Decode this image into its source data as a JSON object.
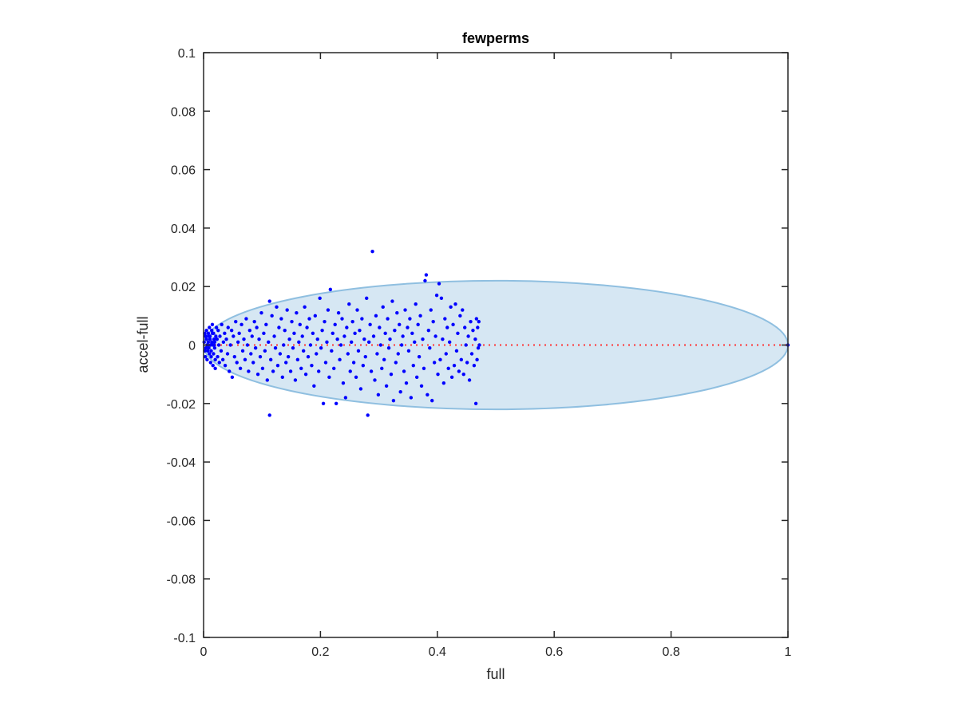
{
  "chart_data": {
    "type": "scatter",
    "title": "fewperms",
    "xlabel": "full",
    "ylabel": "accel-full",
    "xlim": [
      0,
      1
    ],
    "ylim": [
      -0.1,
      0.1
    ],
    "xticks": [
      0,
      0.2,
      0.4,
      0.6,
      0.8,
      1
    ],
    "xtick_labels": [
      "0",
      "0.2",
      "0.4",
      "0.6",
      "0.8",
      "1"
    ],
    "yticks": [
      -0.1,
      -0.08,
      -0.06,
      -0.04,
      -0.02,
      0,
      0.02,
      0.04,
      0.06,
      0.08,
      0.1
    ],
    "ytick_labels": [
      "-0.1",
      "-0.08",
      "-0.06",
      "-0.04",
      "-0.02",
      "0",
      "0.02",
      "0.04",
      "0.06",
      "0.08",
      "0.1"
    ],
    "grid": false,
    "colors": {
      "points": "#0000ff",
      "ellipse_fill": "#d6e7f3",
      "ellipse_stroke": "#8fbfe0",
      "reference_line": "#ff3333",
      "axes": "#262626"
    },
    "ellipse": {
      "center": [
        0.5,
        0
      ],
      "semi_axis_x": 0.5,
      "semi_axis_y": 0.022
    },
    "reference_line": {
      "from": [
        0,
        0
      ],
      "to": [
        1,
        0
      ],
      "style": "dotted"
    },
    "series": [
      {
        "points": [
          [
            0.001,
            0.001
          ],
          [
            0.002,
            -0.002
          ],
          [
            0.003,
            0.003
          ],
          [
            0.002,
            0.004
          ],
          [
            0.004,
            -0.001
          ],
          [
            0.005,
            0.002
          ],
          [
            0.003,
            -0.004
          ],
          [
            0.006,
            0.0
          ],
          [
            0.004,
            0.003
          ],
          [
            0.007,
            -0.002
          ],
          [
            0.005,
            0.005
          ],
          [
            0.008,
            0.001
          ],
          [
            0.006,
            -0.005
          ],
          [
            0.009,
            0.003
          ],
          [
            0.007,
            0.0
          ],
          [
            0.01,
            -0.003
          ],
          [
            0.008,
            0.004
          ],
          [
            0.011,
            0.002
          ],
          [
            0.009,
            -0.001
          ],
          [
            0.012,
            0.0
          ],
          [
            0.01,
            0.006
          ],
          [
            0.013,
            -0.004
          ],
          [
            0.011,
            0.003
          ],
          [
            0.014,
            0.001
          ],
          [
            0.012,
            -0.006
          ],
          [
            0.015,
            0.004
          ],
          [
            0.013,
            -0.002
          ],
          [
            0.016,
            0.0
          ],
          [
            0.014,
            0.005
          ],
          [
            0.017,
            -0.003
          ],
          [
            0.015,
            0.007
          ],
          [
            0.018,
            0.002
          ],
          [
            0.016,
            -0.007
          ],
          [
            0.019,
            0.001
          ],
          [
            0.017,
            0.004
          ],
          [
            0.02,
            -0.005
          ],
          [
            0.018,
            0.0
          ],
          [
            0.021,
            0.003
          ],
          [
            0.019,
            -0.001
          ],
          [
            0.022,
            0.006
          ],
          [
            0.02,
            -0.008
          ],
          [
            0.023,
            0.002
          ],
          [
            0.024,
            -0.004
          ],
          [
            0.025,
            0.005
          ],
          [
            0.026,
            0.0
          ],
          [
            0.027,
            -0.006
          ],
          [
            0.028,
            0.003
          ],
          [
            0.03,
            -0.002
          ],
          [
            0.031,
            0.007
          ],
          [
            0.033,
            -0.005
          ],
          [
            0.034,
            0.001
          ],
          [
            0.036,
            0.004
          ],
          [
            0.037,
            -0.007
          ],
          [
            0.039,
            0.002
          ],
          [
            0.041,
            -0.003
          ],
          [
            0.042,
            0.006
          ],
          [
            0.044,
            -0.009
          ],
          [
            0.046,
            0.0
          ],
          [
            0.048,
            0.005
          ],
          [
            0.049,
            -0.011
          ],
          [
            0.051,
            0.003
          ],
          [
            0.053,
            -0.004
          ],
          [
            0.055,
            0.008
          ],
          [
            0.057,
            -0.006
          ],
          [
            0.059,
            0.001
          ],
          [
            0.061,
            0.004
          ],
          [
            0.063,
            -0.008
          ],
          [
            0.065,
            0.007
          ],
          [
            0.067,
            -0.002
          ],
          [
            0.069,
            0.002
          ],
          [
            0.071,
            -0.005
          ],
          [
            0.073,
            0.009
          ],
          [
            0.075,
            0.0
          ],
          [
            0.077,
            -0.009
          ],
          [
            0.079,
            0.005
          ],
          [
            0.081,
            -0.003
          ],
          [
            0.083,
            0.003
          ],
          [
            0.085,
            -0.006
          ],
          [
            0.087,
            0.008
          ],
          [
            0.089,
            -0.001
          ],
          [
            0.091,
            0.006
          ],
          [
            0.093,
            -0.01
          ],
          [
            0.095,
            0.002
          ],
          [
            0.097,
            -0.004
          ],
          [
            0.099,
            0.011
          ],
          [
            0.101,
            -0.008
          ],
          [
            0.103,
            0.004
          ],
          [
            0.105,
            -0.002
          ],
          [
            0.107,
            0.007
          ],
          [
            0.109,
            -0.012
          ],
          [
            0.111,
            0.001
          ],
          [
            0.113,
            0.015
          ],
          [
            0.113,
            -0.024
          ],
          [
            0.115,
            -0.005
          ],
          [
            0.117,
            0.01
          ],
          [
            0.119,
            -0.009
          ],
          [
            0.121,
            0.003
          ],
          [
            0.123,
            -0.001
          ],
          [
            0.125,
            0.013
          ],
          [
            0.127,
            -0.007
          ],
          [
            0.129,
            0.006
          ],
          [
            0.131,
            -0.003
          ],
          [
            0.133,
            0.009
          ],
          [
            0.135,
            -0.011
          ],
          [
            0.137,
            0.0
          ],
          [
            0.139,
            0.005
          ],
          [
            0.141,
            -0.006
          ],
          [
            0.143,
            0.012
          ],
          [
            0.145,
            -0.004
          ],
          [
            0.147,
            0.002
          ],
          [
            0.149,
            -0.009
          ],
          [
            0.151,
            0.008
          ],
          [
            0.153,
            -0.001
          ],
          [
            0.155,
            0.004
          ],
          [
            0.157,
            -0.012
          ],
          [
            0.159,
            0.011
          ],
          [
            0.161,
            -0.005
          ],
          [
            0.163,
            0.001
          ],
          [
            0.165,
            0.007
          ],
          [
            0.167,
            -0.008
          ],
          [
            0.169,
            0.003
          ],
          [
            0.171,
            -0.002
          ],
          [
            0.173,
            0.013
          ],
          [
            0.175,
            -0.01
          ],
          [
            0.177,
            0.006
          ],
          [
            0.179,
            -0.004
          ],
          [
            0.181,
            0.009
          ],
          [
            0.183,
            0.0
          ],
          [
            0.185,
            -0.007
          ],
          [
            0.187,
            0.004
          ],
          [
            0.189,
            -0.014
          ],
          [
            0.191,
            0.01
          ],
          [
            0.193,
            -0.003
          ],
          [
            0.195,
            0.002
          ],
          [
            0.197,
            -0.009
          ],
          [
            0.199,
            0.016
          ],
          [
            0.201,
            -0.001
          ],
          [
            0.203,
            0.005
          ],
          [
            0.205,
            -0.02
          ],
          [
            0.207,
            0.008
          ],
          [
            0.209,
            -0.006
          ],
          [
            0.211,
            0.001
          ],
          [
            0.213,
            0.012
          ],
          [
            0.215,
            -0.011
          ],
          [
            0.217,
            0.019
          ],
          [
            0.219,
            -0.002
          ],
          [
            0.221,
            0.004
          ],
          [
            0.223,
            -0.008
          ],
          [
            0.225,
            0.007
          ],
          [
            0.227,
            -0.02
          ],
          [
            0.229,
            0.002
          ],
          [
            0.231,
            0.011
          ],
          [
            0.233,
            -0.005
          ],
          [
            0.235,
            0.0
          ],
          [
            0.237,
            0.009
          ],
          [
            0.239,
            -0.013
          ],
          [
            0.241,
            0.003
          ],
          [
            0.243,
            -0.018
          ],
          [
            0.245,
            0.006
          ],
          [
            0.247,
            -0.003
          ],
          [
            0.249,
            0.014
          ],
          [
            0.251,
            -0.009
          ],
          [
            0.253,
            0.001
          ],
          [
            0.255,
            0.008
          ],
          [
            0.257,
            -0.006
          ],
          [
            0.259,
            0.004
          ],
          [
            0.261,
            -0.011
          ],
          [
            0.263,
            0.012
          ],
          [
            0.265,
            -0.002
          ],
          [
            0.267,
            0.005
          ],
          [
            0.269,
            -0.015
          ],
          [
            0.271,
            0.009
          ],
          [
            0.273,
            -0.007
          ],
          [
            0.275,
            0.002
          ],
          [
            0.277,
            -0.004
          ],
          [
            0.279,
            0.016
          ],
          [
            0.281,
            -0.024
          ],
          [
            0.283,
            0.001
          ],
          [
            0.285,
            0.007
          ],
          [
            0.287,
            -0.009
          ],
          [
            0.289,
            0.032
          ],
          [
            0.291,
            0.003
          ],
          [
            0.293,
            -0.012
          ],
          [
            0.295,
            0.01
          ],
          [
            0.297,
            -0.003
          ],
          [
            0.299,
            -0.017
          ],
          [
            0.301,
            0.006
          ],
          [
            0.303,
            0.0
          ],
          [
            0.305,
            -0.008
          ],
          [
            0.307,
            0.013
          ],
          [
            0.309,
            -0.005
          ],
          [
            0.311,
            0.004
          ],
          [
            0.313,
            -0.014
          ],
          [
            0.315,
            0.009
          ],
          [
            0.317,
            -0.001
          ],
          [
            0.319,
            0.002
          ],
          [
            0.321,
            -0.01
          ],
          [
            0.323,
            0.015
          ],
          [
            0.325,
            -0.019
          ],
          [
            0.327,
            0.005
          ],
          [
            0.329,
            -0.006
          ],
          [
            0.331,
            0.011
          ],
          [
            0.333,
            -0.003
          ],
          [
            0.335,
            0.007
          ],
          [
            0.337,
            -0.016
          ],
          [
            0.339,
            0.0
          ],
          [
            0.341,
            0.003
          ],
          [
            0.343,
            -0.009
          ],
          [
            0.345,
            0.012
          ],
          [
            0.347,
            -0.013
          ],
          [
            0.349,
            0.006
          ],
          [
            0.351,
            -0.002
          ],
          [
            0.353,
            0.009
          ],
          [
            0.355,
            -0.018
          ],
          [
            0.357,
            0.004
          ],
          [
            0.359,
            -0.007
          ],
          [
            0.361,
            0.001
          ],
          [
            0.363,
            0.014
          ],
          [
            0.365,
            -0.011
          ],
          [
            0.367,
            0.007
          ],
          [
            0.369,
            -0.004
          ],
          [
            0.371,
            0.01
          ],
          [
            0.373,
            -0.014
          ],
          [
            0.375,
            0.002
          ],
          [
            0.377,
            -0.008
          ],
          [
            0.379,
            0.022
          ],
          [
            0.381,
            0.024
          ],
          [
            0.383,
            -0.017
          ],
          [
            0.385,
            0.005
          ],
          [
            0.387,
            -0.001
          ],
          [
            0.389,
            0.012
          ],
          [
            0.391,
            -0.019
          ],
          [
            0.393,
            0.008
          ],
          [
            0.395,
            -0.006
          ],
          [
            0.397,
            0.003
          ],
          [
            0.399,
            0.017
          ],
          [
            0.401,
            -0.01
          ],
          [
            0.403,
            0.021
          ],
          [
            0.405,
            -0.005
          ],
          [
            0.407,
            0.016
          ],
          [
            0.409,
            0.002
          ],
          [
            0.411,
            -0.013
          ],
          [
            0.413,
            0.009
          ],
          [
            0.415,
            -0.003
          ],
          [
            0.417,
            0.006
          ],
          [
            0.419,
            -0.008
          ],
          [
            0.421,
            0.001
          ],
          [
            0.423,
            0.013
          ],
          [
            0.425,
            -0.011
          ],
          [
            0.427,
            0.007
          ],
          [
            0.429,
            -0.007
          ],
          [
            0.431,
            0.014
          ],
          [
            0.433,
            -0.002
          ],
          [
            0.435,
            0.004
          ],
          [
            0.437,
            -0.009
          ],
          [
            0.439,
            0.01
          ],
          [
            0.441,
            -0.005
          ],
          [
            0.443,
            0.012
          ],
          [
            0.445,
            -0.01
          ],
          [
            0.447,
            0.006
          ],
          [
            0.449,
            0.0
          ],
          [
            0.451,
            -0.006
          ],
          [
            0.453,
            0.003
          ],
          [
            0.455,
            -0.012
          ],
          [
            0.457,
            0.008
          ],
          [
            0.459,
            -0.003
          ],
          [
            0.461,
            0.005
          ],
          [
            0.463,
            -0.007
          ],
          [
            0.465,
            0.002
          ],
          [
            0.466,
            -0.02
          ],
          [
            0.467,
            0.009
          ],
          [
            0.468,
            -0.005
          ],
          [
            0.469,
            0.006
          ],
          [
            0.47,
            -0.001
          ],
          [
            0.471,
            0.008
          ],
          [
            0.472,
            0.0
          ],
          [
            1.0,
            0.0
          ]
        ]
      }
    ]
  }
}
